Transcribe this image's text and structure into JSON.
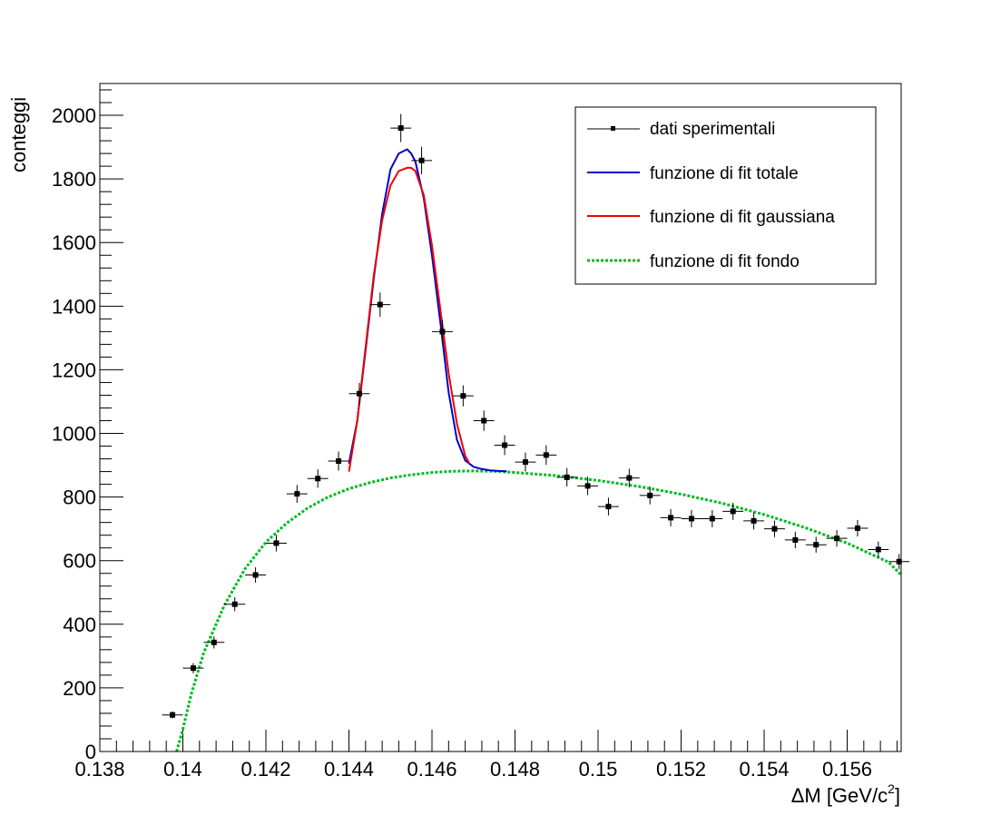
{
  "chart_data": {
    "type": "scatter",
    "title": "",
    "xlabel": "ΔM [GeV/c²]",
    "xlabel_main": "ΔM [GeV/c",
    "xlabel_sup": "2",
    "xlabel_end": "]",
    "ylabel": "conteggi",
    "xlim": [
      0.138,
      0.1573
    ],
    "ylim": [
      0,
      2100
    ],
    "x_ticks": [
      0.138,
      0.14,
      0.142,
      0.144,
      0.146,
      0.148,
      0.15,
      0.152,
      0.154,
      0.156
    ],
    "x_tick_labels": [
      "0.138",
      "0.14",
      "0.142",
      "0.144",
      "0.146",
      "0.148",
      "0.15",
      "0.152",
      "0.154",
      "0.156"
    ],
    "y_ticks": [
      0,
      200,
      400,
      600,
      800,
      1000,
      1200,
      1400,
      1600,
      1800,
      2000
    ],
    "y_tick_labels": [
      "0",
      "200",
      "400",
      "600",
      "800",
      "1000",
      "1200",
      "1400",
      "1600",
      "1800",
      "2000"
    ],
    "grid": false,
    "legend_position": "top-right",
    "series": [
      {
        "name": "dati sperimentali",
        "kind": "points-with-errors",
        "color": "#000000",
        "x_half_width": 0.00025,
        "x": [
          0.13975,
          0.14025,
          0.14075,
          0.14125,
          0.14175,
          0.14225,
          0.14275,
          0.14325,
          0.14375,
          0.14425,
          0.14475,
          0.14525,
          0.14575,
          0.14625,
          0.14675,
          0.14725,
          0.14775,
          0.14825,
          0.14875,
          0.14925,
          0.14975,
          0.15025,
          0.15075,
          0.15125,
          0.15175,
          0.15225,
          0.15275,
          0.15325,
          0.15375,
          0.15425,
          0.15475,
          0.15525,
          0.15575,
          0.15625,
          0.15675,
          0.15725
        ],
        "y": [
          115,
          262,
          343,
          463,
          555,
          655,
          810,
          858,
          913,
          1125,
          1405,
          1960,
          1858,
          1320,
          1118,
          1040,
          963,
          910,
          932,
          862,
          835,
          770,
          860,
          805,
          735,
          732,
          732,
          755,
          725,
          700,
          665,
          650,
          670,
          702,
          635,
          597
        ],
        "y_err": [
          11,
          16,
          19,
          22,
          24,
          26,
          28,
          29,
          30,
          34,
          38,
          44,
          43,
          36,
          33,
          32,
          31,
          30,
          31,
          29,
          29,
          28,
          29,
          28,
          27,
          27,
          27,
          27,
          27,
          26,
          26,
          25,
          26,
          26,
          25,
          24
        ]
      },
      {
        "name": "funzione di fit totale",
        "kind": "line",
        "color": "#0000cc",
        "x": [
          0.144,
          0.1442,
          0.1444,
          0.1446,
          0.1448,
          0.145,
          0.1452,
          0.1454,
          0.1455,
          0.1456,
          0.1458,
          0.146,
          0.1462,
          0.1464,
          0.1466,
          0.1468,
          0.147,
          0.1472,
          0.1474,
          0.1476,
          0.1478
        ],
        "y": [
          905,
          1040,
          1260,
          1490,
          1690,
          1830,
          1880,
          1893,
          1880,
          1855,
          1740,
          1560,
          1350,
          1130,
          980,
          915,
          895,
          888,
          884,
          882,
          881
        ]
      },
      {
        "name": "funzione di fit gaussiana",
        "kind": "line",
        "color": "#ee0000",
        "x": [
          0.144,
          0.1442,
          0.1444,
          0.1446,
          0.1448,
          0.145,
          0.1452,
          0.1454,
          0.1455,
          0.1456,
          0.1458,
          0.146,
          0.1462,
          0.1464,
          0.1466,
          0.1468,
          0.1469
        ],
        "y": [
          880,
          1040,
          1270,
          1500,
          1670,
          1780,
          1825,
          1835,
          1835,
          1825,
          1750,
          1590,
          1390,
          1190,
          1030,
          930,
          905
        ]
      },
      {
        "name": "funzione di fit fondo",
        "kind": "dashed-line",
        "color": "#00bb22",
        "x": [
          0.13985,
          0.14,
          0.1402,
          0.1405,
          0.141,
          0.1415,
          0.142,
          0.1425,
          0.143,
          0.1435,
          0.144,
          0.1445,
          0.145,
          0.1455,
          0.146,
          0.1465,
          0.147,
          0.1475,
          0.148,
          0.149,
          0.15,
          0.151,
          0.152,
          0.153,
          0.154,
          0.155,
          0.156,
          0.157,
          0.1573
        ],
        "y": [
          0,
          70,
          180,
          310,
          460,
          575,
          658,
          718,
          765,
          800,
          826,
          845,
          860,
          870,
          877,
          881,
          882,
          881,
          877,
          867,
          852,
          833,
          809,
          780,
          745,
          703,
          655,
          595,
          555
        ]
      }
    ]
  }
}
